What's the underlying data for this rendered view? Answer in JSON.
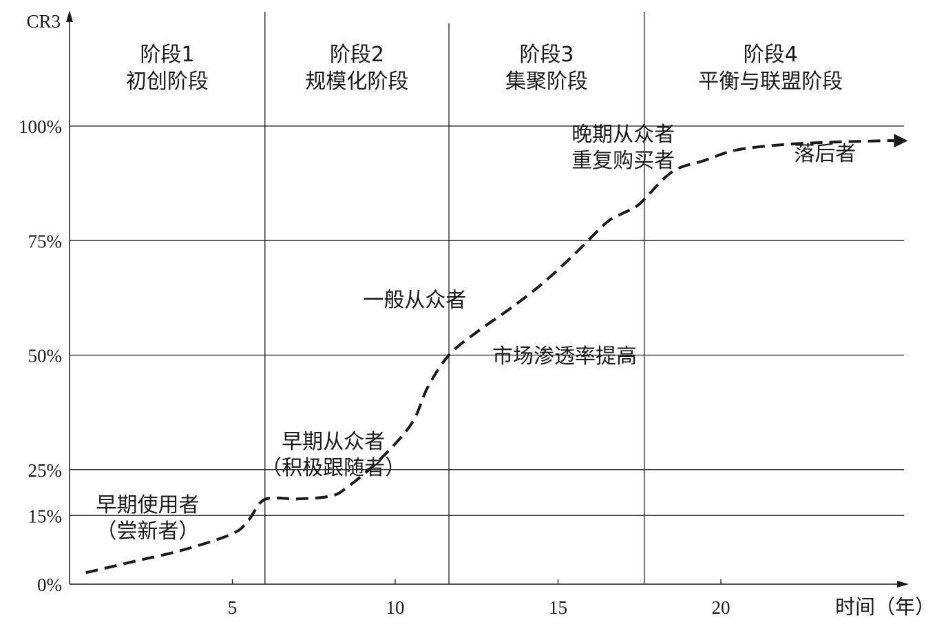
{
  "chart_data": {
    "type": "line",
    "ylabel": "CR3",
    "xlabel": "时间（年）",
    "x_ticks": [
      "5",
      "10",
      "15",
      "20"
    ],
    "y_ticks": [
      "0%",
      "15%",
      "25%",
      "50%",
      "75%",
      "100%"
    ],
    "stages": [
      {
        "title": "阶段1",
        "subtitle": "初创阶段",
        "x_start": 0,
        "x_end": 6.0
      },
      {
        "title": "阶段2",
        "subtitle": "规模化阶段",
        "x_start": 6.0,
        "x_end": 11.65
      },
      {
        "title": "阶段3",
        "subtitle": "集聚阶段",
        "x_start": 11.65,
        "x_end": 17.65
      },
      {
        "title": "阶段4",
        "subtitle": "平衡与联盟阶段",
        "x_start": 17.65,
        "x_end": 25.4
      }
    ],
    "annotations": [
      {
        "lines": [
          "早期使用者",
          "（尝新者）"
        ],
        "x": 2.4,
        "y": 15.8
      },
      {
        "lines": [
          "早期从众者",
          "（积极跟随者）"
        ],
        "x": 8.1,
        "y": 29.6
      },
      {
        "lines": [
          "一般从众者"
        ],
        "x": 10.6,
        "y": 60.5
      },
      {
        "lines": [
          "市场渗透率提高"
        ],
        "x": 15.2,
        "y": 48.3
      },
      {
        "lines": [
          "晚期从众者",
          "重复购买者"
        ],
        "x": 17.0,
        "y": 96.7
      },
      {
        "lines": [
          "落后者"
        ],
        "x": 23.2,
        "y": 92.5
      }
    ],
    "series": [
      {
        "x": [
          0.5,
          2,
          3.5,
          5,
          5.5,
          6,
          7,
          8,
          8.5,
          9.5,
          10.5,
          11,
          11.65,
          12.5,
          13.5,
          14.5,
          15.5,
          16.5,
          17,
          17.5,
          18.5,
          19.5,
          20.5,
          22,
          23.5,
          25,
          25.4
        ],
        "values": [
          2.5,
          5.0,
          7.5,
          11.0,
          14.0,
          18.5,
          18.6,
          19.2,
          21.0,
          27.0,
          35.0,
          43.0,
          50.0,
          55.0,
          60.0,
          65.5,
          72.0,
          79.0,
          81.0,
          83.0,
          90.0,
          92.5,
          94.8,
          96.0,
          96.5,
          96.8,
          96.8
        ]
      }
    ],
    "xlim": [
      0,
      25.8
    ],
    "ylim": [
      0,
      100
    ],
    "grid": true,
    "line_style": "dashed",
    "arrow_at_end": true
  }
}
